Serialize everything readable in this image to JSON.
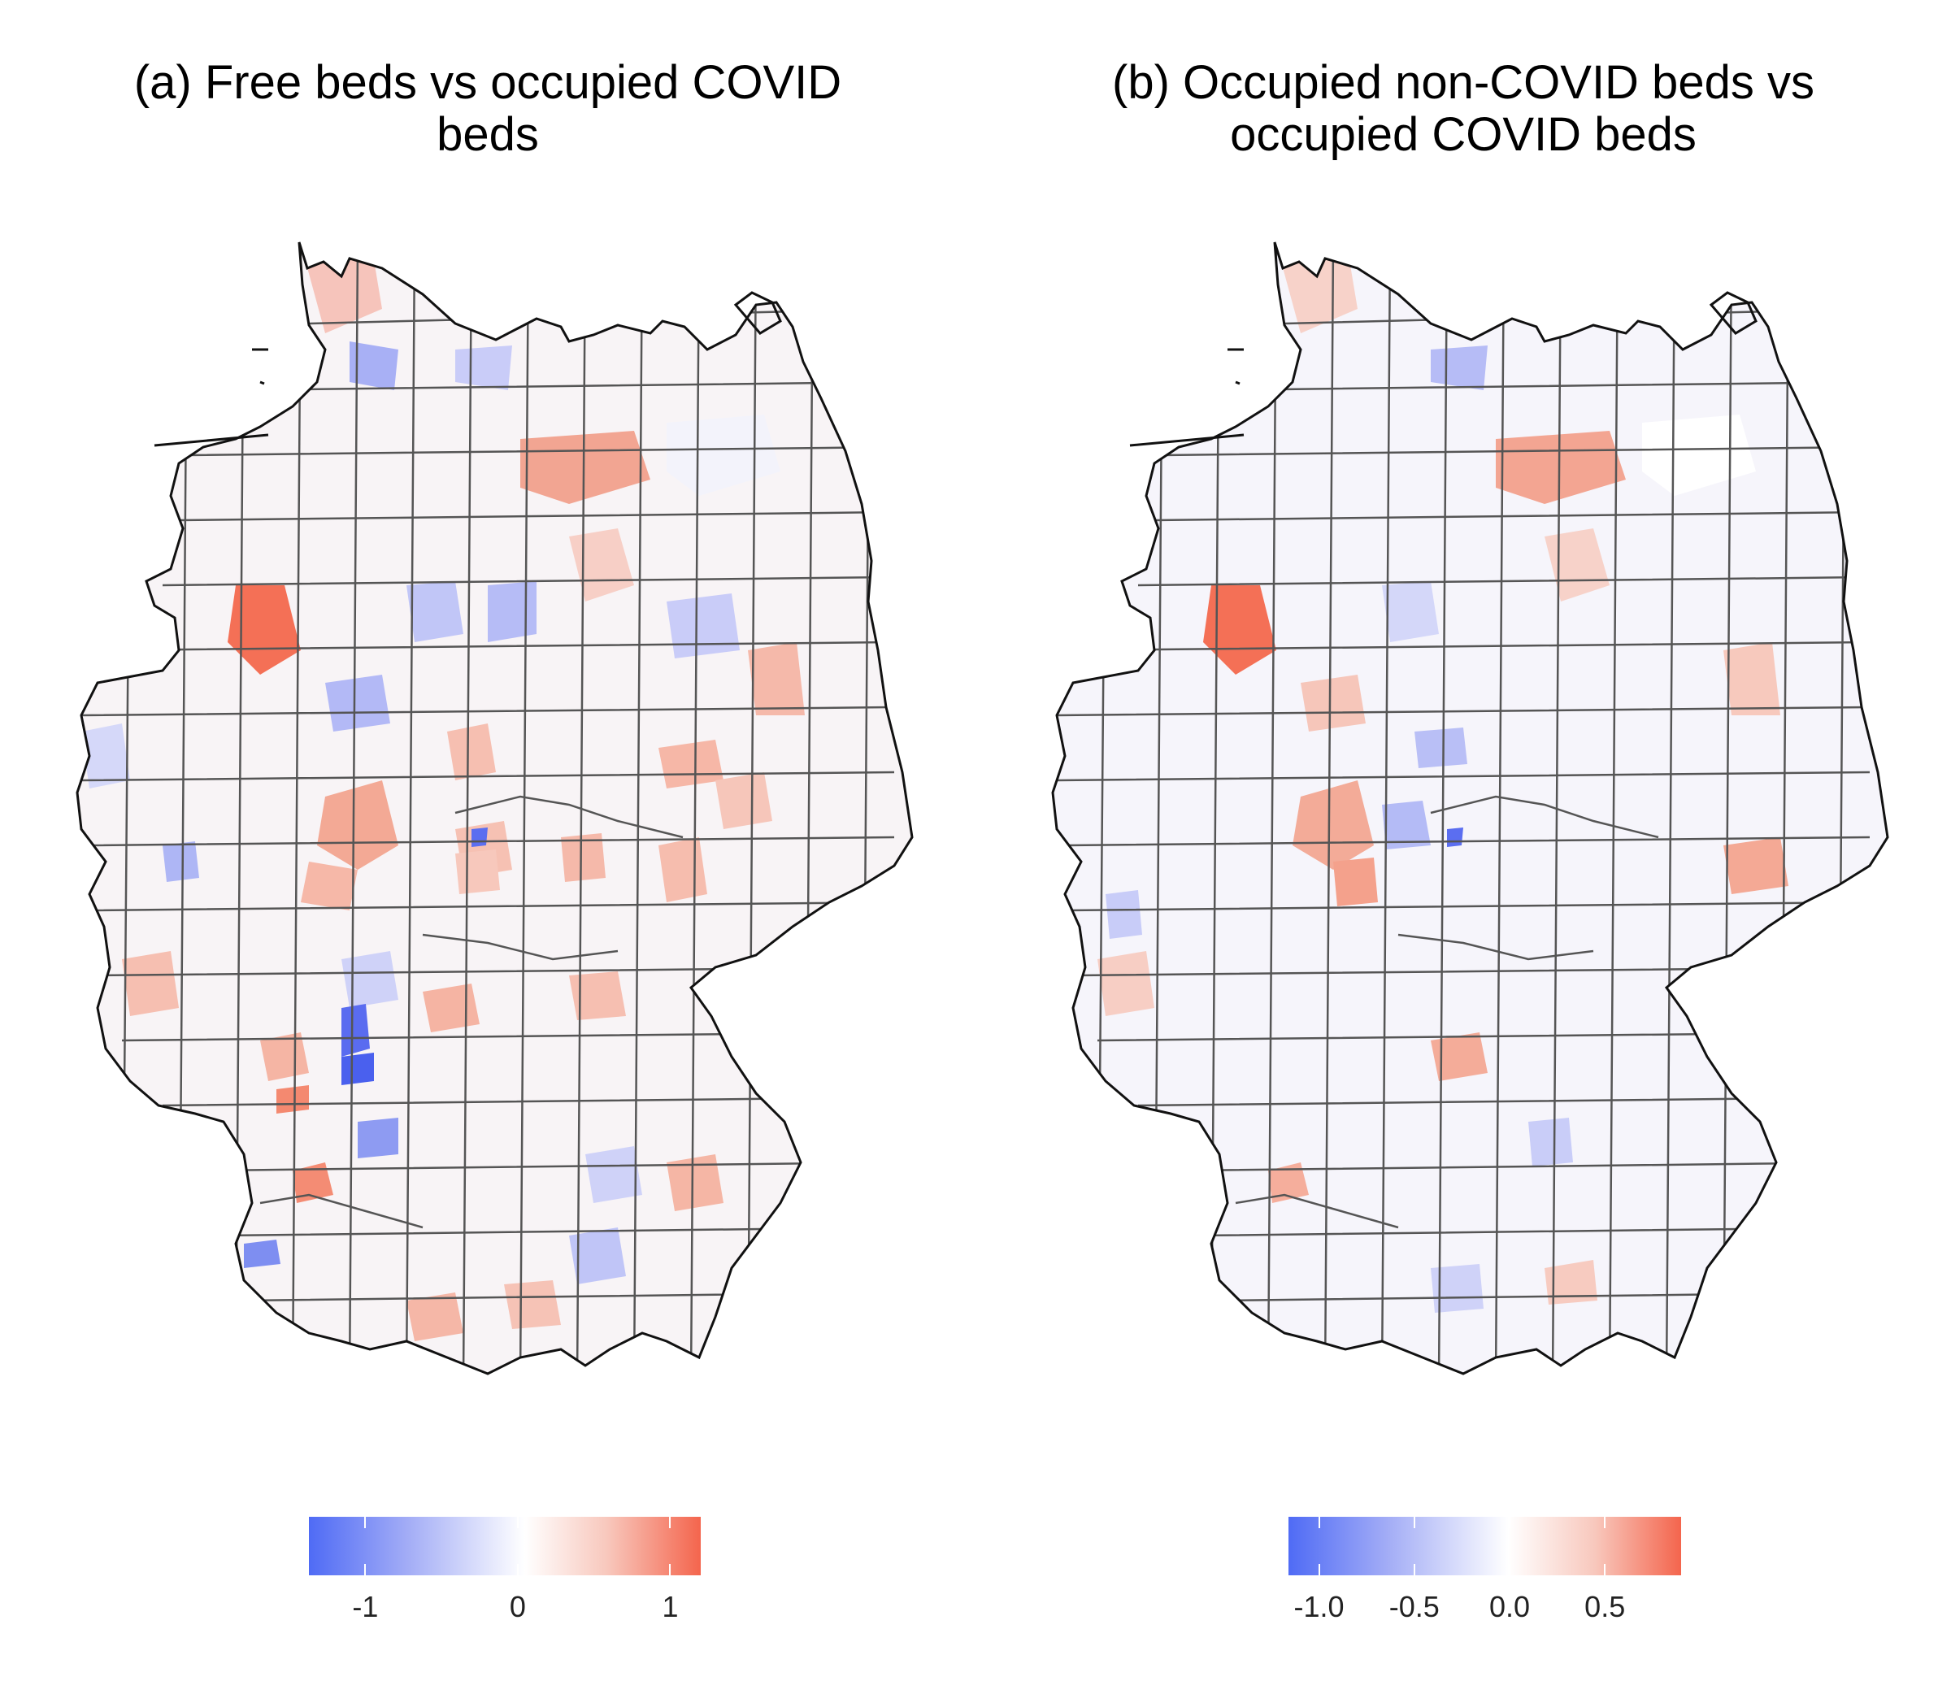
{
  "panels": [
    {
      "title_line1": "(a) Free beds vs occupied COVID",
      "title_line2": "beds",
      "legend": {
        "min": -1.37,
        "max": 1.2,
        "ticks": [
          {
            "value": -1,
            "label": "-1"
          },
          {
            "value": 0,
            "label": "0"
          },
          {
            "value": 1,
            "label": "1"
          }
        ]
      }
    },
    {
      "title_line1": "(b) Occupied non-COVID beds vs",
      "title_line2": "occupied COVID beds",
      "legend": {
        "min": -1.16,
        "max": 0.9,
        "ticks": [
          {
            "value": -1.0,
            "label": "-1.0"
          },
          {
            "value": -0.5,
            "label": "-0.5"
          },
          {
            "value": 0.0,
            "label": "0.0"
          },
          {
            "value": 0.5,
            "label": "0.5"
          }
        ]
      }
    }
  ],
  "colors": {
    "low": "#4f6bf5",
    "mid": "#ffffff",
    "high": "#f4654d",
    "district_border": "#555555",
    "outer_border": "#111111"
  }
}
